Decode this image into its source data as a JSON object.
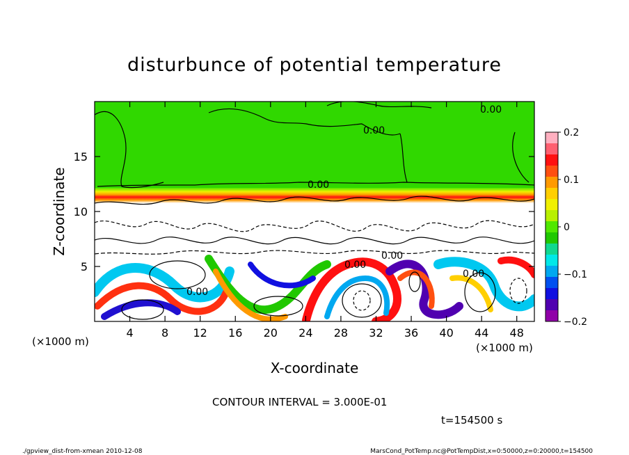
{
  "chart_data": {
    "type": "heatmap",
    "title": "disturbunce of potential temperature",
    "xlabel": "X-coordinate",
    "ylabel": "Z-coordinate",
    "x_unit_left": "(×1000 m)",
    "x_unit_right": "(×1000 m)",
    "x_ticks": [
      "4",
      "8",
      "12",
      "16",
      "20",
      "24",
      "28",
      "32",
      "36",
      "40",
      "44",
      "48"
    ],
    "x_tick_values": [
      4,
      8,
      12,
      16,
      20,
      24,
      28,
      32,
      36,
      40,
      44,
      48
    ],
    "y_ticks": [
      "5",
      "10",
      "15"
    ],
    "y_tick_values": [
      5,
      10,
      15
    ],
    "xlim": [
      0,
      50
    ],
    "ylim": [
      0,
      20
    ],
    "colorbar": {
      "ticks": [
        "0.2",
        "0.1",
        "0",
        "−0.1",
        "−0.2"
      ],
      "tick_values": [
        0.2,
        0.1,
        0,
        -0.1,
        -0.2
      ],
      "range": [
        -0.2,
        0.2
      ],
      "colors": [
        "#ffb0c0",
        "#ff6070",
        "#ff1010",
        "#ff5010",
        "#ff9a00",
        "#ffcf00",
        "#f0f000",
        "#b8f000",
        "#50e800",
        "#20c800",
        "#10d890",
        "#00e8e8",
        "#00a8f0",
        "#0050f0",
        "#1010e0",
        "#5000b0",
        "#9000a8"
      ]
    },
    "contour_labels": [
      "0.00",
      "0.00",
      "0.00",
      "0.00",
      "0.00",
      "0.00",
      "0.00"
    ],
    "contour_interval_text": "CONTOUR INTERVAL = 3.000E-01",
    "time_text": "t=154500 s"
  },
  "footer": {
    "left": "./gpview_dist-from-xmean  2010-12-08",
    "right": "MarsCond_PotTemp.nc@PotTempDist,x=0:50000,z=0:20000,t=154500"
  }
}
